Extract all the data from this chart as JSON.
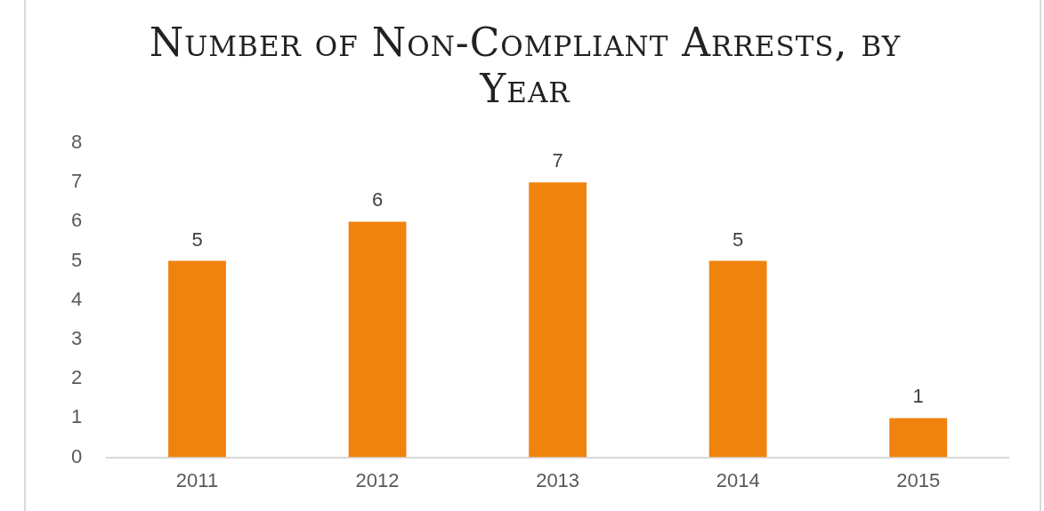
{
  "chart_data": {
    "type": "bar",
    "title": "Number of Non-Compliant Arrests, by Year",
    "categories": [
      "2011",
      "2012",
      "2013",
      "2014",
      "2015"
    ],
    "values": [
      5,
      6,
      7,
      5,
      1
    ],
    "color": "#f0820e",
    "ylim": [
      0,
      8
    ],
    "yticks": [
      0,
      1,
      2,
      3,
      4,
      5,
      6,
      7,
      8
    ],
    "grid": false,
    "legend": false,
    "data_labels": true
  }
}
